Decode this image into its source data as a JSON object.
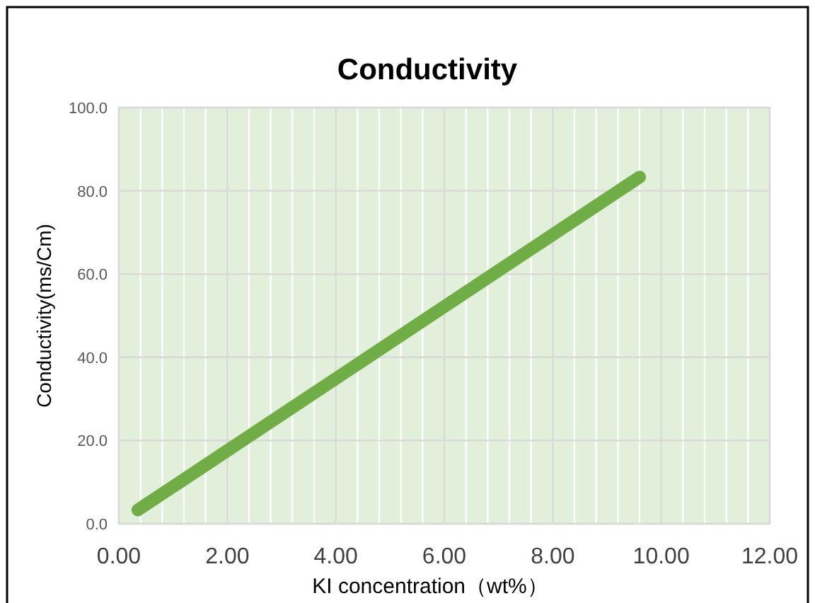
{
  "chart_data": {
    "type": "line",
    "title": "Conductivity",
    "xlabel": "KI concentration（wt%）",
    "ylabel": "Conductivity(ms/Cm)",
    "x": [
      0.35,
      9.6
    ],
    "series": [
      {
        "color": "#70ad47",
        "values": [
          3.3,
          83.3
        ]
      }
    ],
    "xlim": [
      0,
      12
    ],
    "xticks": [
      {
        "value": 0,
        "label": "0.00"
      },
      {
        "value": 2,
        "label": "2.00"
      },
      {
        "value": 4,
        "label": "4.00"
      },
      {
        "value": 6,
        "label": "6.00"
      },
      {
        "value": 8,
        "label": "8.00"
      },
      {
        "value": 10,
        "label": "10.00"
      },
      {
        "value": 12,
        "label": "12.00"
      }
    ],
    "ylim": [
      0,
      100
    ],
    "yticks": [
      {
        "value": 0,
        "label": "0.0"
      },
      {
        "value": 20,
        "label": "20.0"
      },
      {
        "value": 40,
        "label": "40.0"
      },
      {
        "value": 60,
        "label": "60.0"
      },
      {
        "value": 80,
        "label": "80.0"
      },
      {
        "value": 100,
        "label": "100.0"
      }
    ],
    "grid": true,
    "marker": "none",
    "line_style": "solid"
  }
}
